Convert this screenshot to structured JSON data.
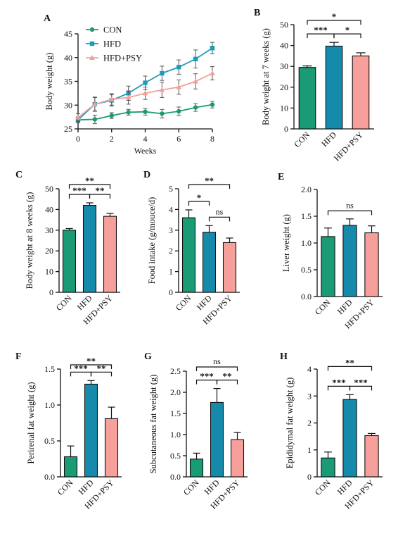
{
  "colors": {
    "CON": "#1a9a75",
    "HFD": "#158aab",
    "HFD+PSY": "#f7a09b",
    "CON_line": "#1a9a75",
    "HFD_line": "#1e9bb8",
    "HFD+PSY_line": "#f2a09c"
  },
  "chart_data": [
    {
      "panel": "A",
      "type": "line",
      "xlabel": "Weeks",
      "ylabel": "Body weight (g)",
      "xlim": [
        0,
        8
      ],
      "ylim": [
        25,
        45
      ],
      "xticks": [
        0,
        2,
        4,
        6,
        8
      ],
      "yticks": [
        25,
        30,
        35,
        40,
        45
      ],
      "legend_position": "top-left",
      "grid": false,
      "x": [
        0,
        1,
        2,
        3,
        4,
        5,
        6,
        7,
        8
      ],
      "series": [
        {
          "name": "CON",
          "values": [
            26.9,
            27.0,
            27.8,
            28.5,
            28.6,
            28.2,
            28.7,
            29.5,
            30.1
          ],
          "errors": [
            0.6,
            0.9,
            0.6,
            0.6,
            0.7,
            0.9,
            0.9,
            0.8,
            0.7
          ]
        },
        {
          "name": "HFD",
          "values": [
            26.9,
            30.2,
            31.0,
            32.5,
            34.7,
            36.7,
            38.0,
            39.7,
            42.0
          ],
          "errors": [
            0.6,
            1.5,
            1.2,
            1.5,
            1.4,
            1.5,
            1.5,
            1.9,
            1.2
          ]
        },
        {
          "name": "HFD+PSY",
          "values": [
            27.4,
            30.2,
            31.2,
            31.6,
            32.5,
            33.2,
            33.8,
            35.0,
            36.7
          ],
          "errors": [
            0.8,
            1.4,
            1.2,
            1.4,
            1.3,
            1.6,
            1.5,
            1.6,
            1.4
          ]
        }
      ]
    },
    {
      "panel": "B",
      "type": "bar",
      "ylabel": "Body weight at 7 weeks (g)",
      "categories": [
        "CON",
        "HFD",
        "HFD+PSY"
      ],
      "values": [
        29.5,
        39.7,
        35.0
      ],
      "errors": [
        0.7,
        1.8,
        1.5
      ],
      "ylim": [
        0,
        50
      ],
      "yticks": [
        0,
        10,
        20,
        30,
        40,
        50
      ],
      "significance": [
        {
          "from": 0,
          "to": 1,
          "label": "***",
          "level": 1
        },
        {
          "from": 1,
          "to": 2,
          "label": "*",
          "level": 1
        },
        {
          "from": 0,
          "to": 2,
          "label": "*",
          "level": 2
        }
      ]
    },
    {
      "panel": "C",
      "type": "bar",
      "ylabel": "Body weight at 8 weeks (g)",
      "categories": [
        "CON",
        "HFD",
        "HFD+PSY"
      ],
      "values": [
        30.0,
        42.0,
        36.7
      ],
      "errors": [
        0.8,
        1.2,
        1.4
      ],
      "ylim": [
        0,
        50
      ],
      "yticks": [
        0,
        10,
        20,
        30,
        40,
        50
      ],
      "significance": [
        {
          "from": 0,
          "to": 1,
          "label": "***",
          "level": 1
        },
        {
          "from": 1,
          "to": 2,
          "label": "**",
          "level": 1
        },
        {
          "from": 0,
          "to": 2,
          "label": "**",
          "level": 2
        }
      ]
    },
    {
      "panel": "D",
      "type": "bar",
      "ylabel": "Food intake (g/mouce/d)",
      "categories": [
        "CON",
        "HFD",
        "HFD+PSY"
      ],
      "values": [
        3.6,
        2.9,
        2.4
      ],
      "errors": [
        0.38,
        0.32,
        0.22
      ],
      "ylim": [
        0,
        5
      ],
      "yticks": [
        0,
        1,
        2,
        3,
        4,
        5
      ],
      "significance": [
        {
          "from": 0,
          "to": 1,
          "label": "*",
          "level": 1
        },
        {
          "from": 1,
          "to": 2,
          "label": "ns",
          "level": 1
        },
        {
          "from": 0,
          "to": 2,
          "label": "**",
          "level": 2
        }
      ]
    },
    {
      "panel": "E",
      "type": "bar",
      "ylabel": "Liver weight (g)",
      "categories": [
        "CON",
        "HFD",
        "HFD+PSY"
      ],
      "values": [
        1.12,
        1.33,
        1.19
      ],
      "errors": [
        0.16,
        0.12,
        0.13
      ],
      "ylim": [
        0,
        2.0
      ],
      "yticks": [
        0,
        0.5,
        1.0,
        1.5,
        2.0
      ],
      "tick_labels": [
        "0.0",
        "0.5",
        "1.0",
        "1.5",
        "2.0"
      ],
      "significance": [
        {
          "from": 0,
          "to": 2,
          "label": "ns",
          "level": 1.6
        }
      ]
    },
    {
      "panel": "F",
      "type": "bar",
      "ylabel": "Perirenal fat weight (g)",
      "categories": [
        "CON",
        "HFD",
        "HFD+PSY"
      ],
      "values": [
        0.28,
        1.29,
        0.81
      ],
      "errors": [
        0.15,
        0.05,
        0.16
      ],
      "ylim": [
        0,
        1.5
      ],
      "yticks": [
        0,
        0.5,
        1.0,
        1.5
      ],
      "tick_labels": [
        "0.0",
        "0.5",
        "1.0",
        "1.5"
      ],
      "significance": [
        {
          "from": 0,
          "to": 1,
          "label": "***",
          "level": 1
        },
        {
          "from": 1,
          "to": 2,
          "label": "**",
          "level": 1
        },
        {
          "from": 0,
          "to": 2,
          "label": "**",
          "level": 2
        }
      ]
    },
    {
      "panel": "G",
      "type": "bar",
      "ylabel": "Subcutaneous fat weight (g)",
      "categories": [
        "CON",
        "HFD",
        "HFD+PSY"
      ],
      "values": [
        0.42,
        1.76,
        0.88
      ],
      "errors": [
        0.14,
        0.33,
        0.17
      ],
      "ylim": [
        0,
        2.5
      ],
      "yticks": [
        0,
        0.5,
        1.0,
        1.5,
        2.0,
        2.5
      ],
      "tick_labels": [
        "0.0",
        "0.5",
        "1.0",
        "1.5",
        "2.0",
        "2.5"
      ],
      "significance": [
        {
          "from": 0,
          "to": 1,
          "label": "***",
          "level": 1
        },
        {
          "from": 1,
          "to": 2,
          "label": "**",
          "level": 1
        },
        {
          "from": 0,
          "to": 2,
          "label": "ns",
          "level": 2
        }
      ]
    },
    {
      "panel": "H",
      "type": "bar",
      "ylabel": "Epididymal fat weight (g)",
      "categories": [
        "CON",
        "HFD",
        "HFD+PSY"
      ],
      "values": [
        0.7,
        2.87,
        1.53
      ],
      "errors": [
        0.22,
        0.18,
        0.08
      ],
      "ylim": [
        0,
        4
      ],
      "yticks": [
        0,
        1,
        2,
        3,
        4
      ],
      "significance": [
        {
          "from": 0,
          "to": 1,
          "label": "***",
          "level": 1
        },
        {
          "from": 1,
          "to": 2,
          "label": "***",
          "level": 1
        },
        {
          "from": 0,
          "to": 2,
          "label": "**",
          "level": 2
        }
      ]
    }
  ]
}
